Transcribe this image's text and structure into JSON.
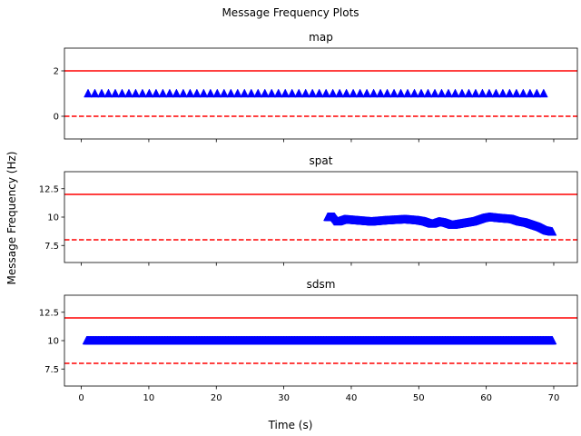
{
  "chart_data": {
    "type": "scatter",
    "title": "Message Frequency Plots",
    "xlabel": "Time (s)",
    "ylabel": "Message Frequency (Hz)",
    "xlim": [
      -2.5,
      73.5
    ],
    "xticks": [
      0,
      10,
      20,
      30,
      40,
      50,
      60,
      70
    ],
    "marker": "triangle-up",
    "marker_color": "#0000ff",
    "limit_color": "#ff0000",
    "panels": [
      {
        "title": "map",
        "ylim": [
          -1,
          3
        ],
        "yticks": [
          0,
          2
        ],
        "upper_limit": 2,
        "lower_limit": 0,
        "series": {
          "x_start": 1.0,
          "x_end": 68.5,
          "count": 68,
          "y": [
            1.0
          ]
        }
      },
      {
        "title": "spat",
        "ylim": [
          6,
          14
        ],
        "yticks": [
          7.5,
          10.0,
          12.5
        ],
        "upper_limit": 12,
        "lower_limit": 8,
        "series": {
          "x_start": 36.5,
          "x_end": 69.8,
          "count": 400,
          "x": [
            36.5,
            37.5,
            38.0,
            39.0,
            41.0,
            43.0,
            45.0,
            48.0,
            50.0,
            51.0,
            52.0,
            53.0,
            54.0,
            55.0,
            56.0,
            58.0,
            59.5,
            60.5,
            62.0,
            64.0,
            65.0,
            66.0,
            67.0,
            68.0,
            69.0,
            69.8
          ],
          "y": [
            10.0,
            10.0,
            9.6,
            9.8,
            9.7,
            9.6,
            9.7,
            9.8,
            9.7,
            9.6,
            9.4,
            9.6,
            9.5,
            9.3,
            9.4,
            9.6,
            9.9,
            10.0,
            9.9,
            9.8,
            9.6,
            9.5,
            9.3,
            9.1,
            8.8,
            8.7
          ]
        }
      },
      {
        "title": "sdsm",
        "ylim": [
          6,
          14
        ],
        "yticks": [
          7.5,
          10.0,
          12.5
        ],
        "upper_limit": 12,
        "lower_limit": 8,
        "series": {
          "x_start": 0.8,
          "x_end": 69.8,
          "count": 690,
          "y": [
            10.0
          ]
        }
      }
    ]
  }
}
